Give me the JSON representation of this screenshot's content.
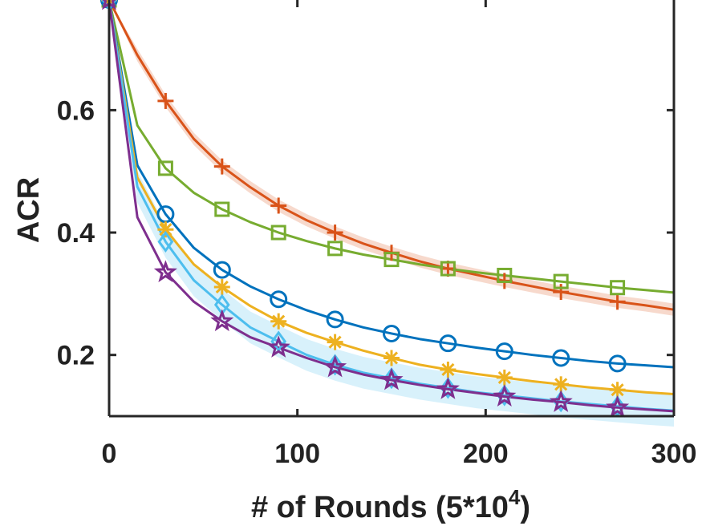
{
  "chart_data": {
    "type": "line",
    "title": "",
    "xlabel": "# of Rounds (5*10",
    "xlabel_superscript": "4",
    "xlabel_suffix": ")",
    "ylabel": "ACR",
    "xlim": [
      0,
      300
    ],
    "ylim": [
      0.1,
      0.78
    ],
    "xticks": [
      0,
      100,
      200,
      300
    ],
    "xtick_labels": [
      "0",
      "100",
      "200",
      "300"
    ],
    "yticks": [
      0.2,
      0.4,
      0.6
    ],
    "ytick_labels": [
      "0.2",
      "0.4",
      "0.6"
    ],
    "grid": false,
    "legend": "none",
    "x": [
      0,
      15,
      30,
      45,
      60,
      75,
      90,
      105,
      120,
      135,
      150,
      165,
      180,
      195,
      210,
      225,
      240,
      255,
      270,
      285,
      300
    ],
    "marker_x": [
      0,
      30,
      60,
      90,
      120,
      150,
      180,
      210,
      240,
      270
    ],
    "series": [
      {
        "color": "#D95319",
        "marker": "plus",
        "band": true,
        "band_halfwidth": 0.01,
        "values": [
          0.78,
          0.69,
          0.615,
          0.553,
          0.508,
          0.474,
          0.444,
          0.42,
          0.4,
          0.382,
          0.367,
          0.353,
          0.341,
          0.331,
          0.321,
          0.312,
          0.303,
          0.295,
          0.287,
          0.281,
          0.274
        ]
      },
      {
        "color": "#77AC30",
        "marker": "square",
        "band": false,
        "values": [
          0.78,
          0.575,
          0.505,
          0.465,
          0.438,
          0.417,
          0.4,
          0.386,
          0.374,
          0.364,
          0.356,
          0.348,
          0.341,
          0.335,
          0.33,
          0.325,
          0.32,
          0.315,
          0.31,
          0.306,
          0.302
        ]
      },
      {
        "color": "#0072BD",
        "marker": "circle",
        "band": false,
        "values": [
          0.78,
          0.51,
          0.43,
          0.375,
          0.339,
          0.312,
          0.291,
          0.273,
          0.258,
          0.245,
          0.235,
          0.226,
          0.219,
          0.212,
          0.206,
          0.2,
          0.195,
          0.19,
          0.186,
          0.183,
          0.18
        ]
      },
      {
        "color": "#EDB120",
        "marker": "asterisk",
        "band": false,
        "values": [
          0.78,
          0.49,
          0.405,
          0.348,
          0.311,
          0.28,
          0.255,
          0.236,
          0.221,
          0.207,
          0.195,
          0.184,
          0.176,
          0.169,
          0.163,
          0.157,
          0.152,
          0.147,
          0.143,
          0.139,
          0.136
        ]
      },
      {
        "color": "#4DBEEE",
        "marker": "diamond",
        "band": true,
        "band_halfwidth": 0.026,
        "values": [
          0.78,
          0.475,
          0.385,
          0.322,
          0.282,
          0.245,
          0.222,
          0.2,
          0.184,
          0.171,
          0.162,
          0.153,
          0.146,
          0.139,
          0.134,
          0.129,
          0.124,
          0.12,
          0.116,
          0.112,
          0.109
        ]
      },
      {
        "color": "#7E2F8E",
        "marker": "star",
        "band": false,
        "values": [
          0.78,
          0.425,
          0.335,
          0.287,
          0.255,
          0.229,
          0.212,
          0.195,
          0.18,
          0.168,
          0.159,
          0.151,
          0.144,
          0.138,
          0.132,
          0.127,
          0.123,
          0.118,
          0.114,
          0.111,
          0.108
        ]
      }
    ]
  }
}
